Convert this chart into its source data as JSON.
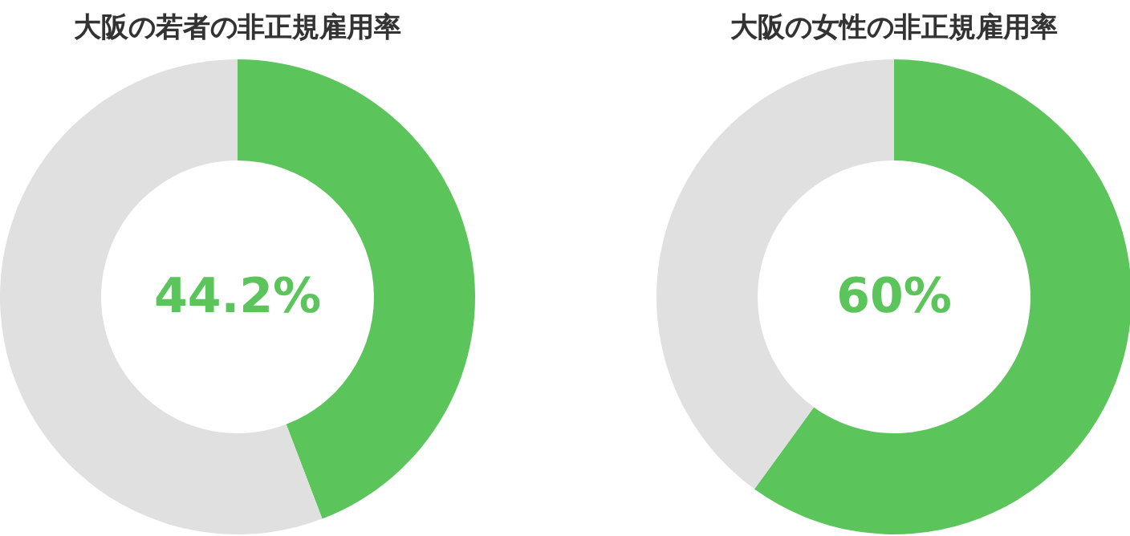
{
  "chart_data": [
    {
      "type": "donut",
      "title": "大阪の若者の非正規雇用率",
      "categories": [
        null,
        null
      ],
      "values": [
        44.2,
        55.8
      ],
      "colors": [
        "#5bc55b",
        "#e0e0e0"
      ],
      "annotations": [
        "44.2%"
      ]
    },
    {
      "type": "donut",
      "title": "大阪の女性の非正規雇用率",
      "categories": [
        null,
        null
      ],
      "values": [
        60,
        40
      ],
      "colors": [
        "#5bc55b",
        "#e0e0e0"
      ],
      "annotations": [
        "60%"
      ]
    }
  ]
}
